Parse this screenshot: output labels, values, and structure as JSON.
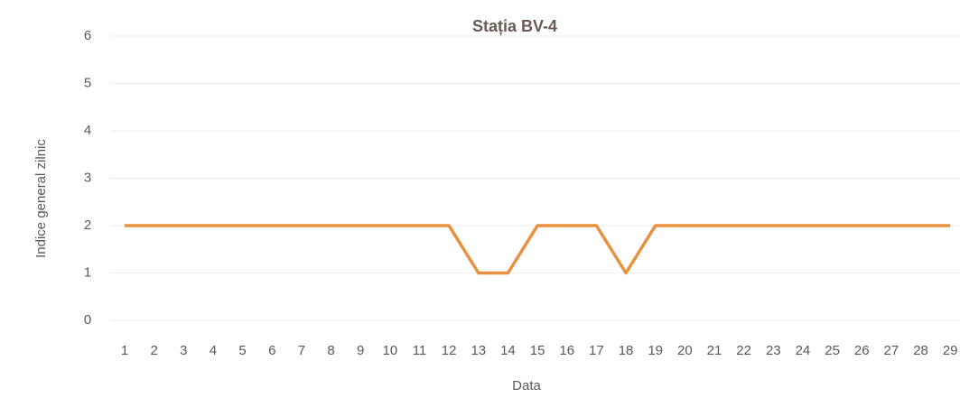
{
  "chart_data": {
    "type": "line",
    "title": "Stația BV-4",
    "x_label": "Data",
    "y_label": "Indice general zilnic",
    "categories": [
      "1",
      "2",
      "3",
      "4",
      "5",
      "6",
      "7",
      "8",
      "9",
      "10",
      "11",
      "12",
      "13",
      "14",
      "15",
      "16",
      "17",
      "18",
      "19",
      "20",
      "21",
      "22",
      "23",
      "24",
      "25",
      "26",
      "27",
      "28",
      "29"
    ],
    "series": [
      {
        "name": "Indice general zilnic",
        "color": "#e8923f",
        "values": [
          2,
          2,
          2,
          2,
          2,
          2,
          2,
          2,
          2,
          2,
          2,
          2,
          1,
          1,
          2,
          2,
          2,
          1,
          2,
          2,
          2,
          2,
          2,
          2,
          2,
          2,
          2,
          2,
          2
        ]
      }
    ],
    "ylim": [
      0,
      6
    ],
    "yticks": [
      0,
      1,
      2,
      3,
      4,
      5,
      6
    ],
    "grid": true
  }
}
